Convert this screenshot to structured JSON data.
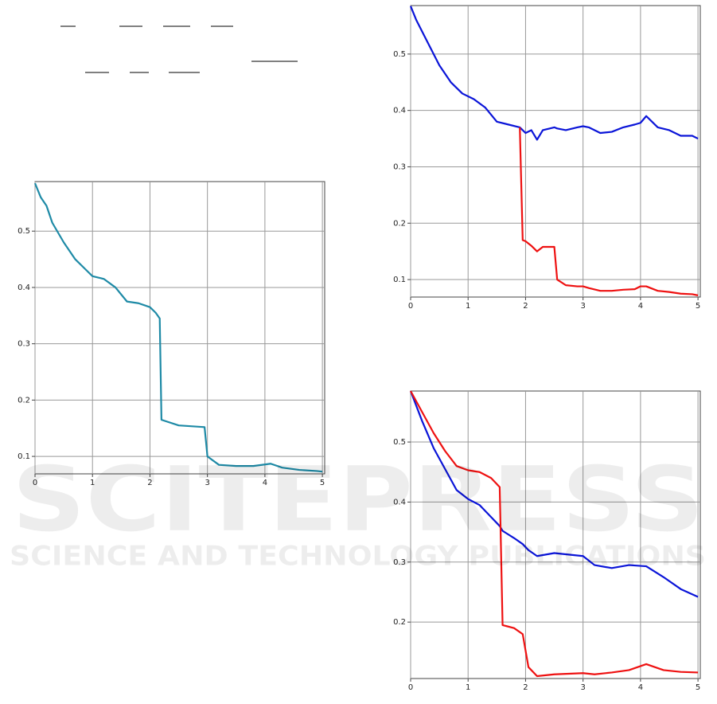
{
  "watermark": {
    "title": "SCITEPRESS",
    "subtitle": "SCIENCE AND TECHNOLOGY PUBLICATIONS"
  },
  "chart_data": [
    {
      "type": "line",
      "x": [
        0,
        0.1,
        0.2,
        0.3,
        0.5,
        0.7,
        0.9,
        1.0,
        1.2,
        1.4,
        1.6,
        1.8,
        2.0,
        2.1,
        2.17,
        2.2,
        2.5,
        2.95,
        3.0,
        3.2,
        3.5,
        3.8,
        4.1,
        4.3,
        4.6,
        4.9,
        5.0
      ],
      "series": [
        {
          "color": "#1e8aa6",
          "values": [
            0.585,
            0.56,
            0.545,
            0.515,
            0.48,
            0.45,
            0.43,
            0.42,
            0.415,
            0.4,
            0.375,
            0.372,
            0.365,
            0.355,
            0.345,
            0.165,
            0.155,
            0.152,
            0.1,
            0.085,
            0.083,
            0.083,
            0.087,
            0.08,
            0.076,
            0.074,
            0.073
          ]
        }
      ],
      "xlim": [
        0,
        5.04
      ],
      "xticks": [
        0,
        1,
        2,
        3,
        4,
        5
      ],
      "ylim": [
        0.069,
        0.588
      ],
      "yticks": [
        0.1,
        0.2,
        0.3,
        0.4,
        0.5
      ],
      "grid": true
    },
    {
      "type": "line",
      "x": [
        0,
        0.1,
        0.3,
        0.5,
        0.7,
        0.9,
        1.1,
        1.3,
        1.5,
        1.7,
        1.9,
        1.95,
        2.0,
        2.1,
        2.2,
        2.3,
        2.5,
        2.55,
        2.7,
        2.9,
        3.0,
        3.1,
        3.3,
        3.5,
        3.7,
        3.9,
        4.0,
        4.1,
        4.3,
        4.5,
        4.7,
        4.9,
        5.0
      ],
      "series": [
        {
          "color": "#0a14d8",
          "values": [
            0.585,
            0.56,
            0.52,
            0.48,
            0.45,
            0.43,
            0.42,
            0.405,
            0.38,
            0.375,
            0.37,
            0.365,
            0.36,
            0.365,
            0.348,
            0.365,
            0.37,
            0.368,
            0.365,
            0.37,
            0.372,
            0.37,
            0.36,
            0.362,
            0.37,
            0.375,
            0.378,
            0.39,
            0.37,
            0.365,
            0.355,
            0.355,
            0.35
          ]
        },
        {
          "color": "#ee1111",
          "values": [
            null,
            null,
            null,
            null,
            null,
            null,
            null,
            null,
            null,
            null,
            0.37,
            0.17,
            0.168,
            0.16,
            0.15,
            0.158,
            0.158,
            0.1,
            0.09,
            0.088,
            0.088,
            0.085,
            0.08,
            0.08,
            0.082,
            0.083,
            0.088,
            0.088,
            0.08,
            0.078,
            0.075,
            0.074,
            0.072
          ]
        }
      ],
      "xlim": [
        0,
        5.04
      ],
      "xticks": [
        0,
        1,
        2,
        3,
        4,
        5
      ],
      "ylim": [
        0.069,
        0.586
      ],
      "yticks": [
        0.1,
        0.2,
        0.3,
        0.4,
        0.5
      ],
      "grid": true
    },
    {
      "type": "line",
      "x": [
        0,
        0.2,
        0.4,
        0.6,
        0.8,
        1.0,
        1.2,
        1.4,
        1.55,
        1.6,
        1.8,
        1.95,
        2.05,
        2.2,
        2.5,
        3.0,
        3.2,
        3.5,
        3.8,
        4.1,
        4.4,
        4.7,
        5.0
      ],
      "series": [
        {
          "color": "#0a14d8",
          "values": [
            0.585,
            0.535,
            0.49,
            0.455,
            0.42,
            0.405,
            0.395,
            0.375,
            0.36,
            0.352,
            0.34,
            0.33,
            0.32,
            0.31,
            0.315,
            0.31,
            0.295,
            0.29,
            0.295,
            0.293,
            0.275,
            0.255,
            0.242
          ]
        },
        {
          "color": "#ee1111",
          "values": [
            0.585,
            0.55,
            0.515,
            0.485,
            0.46,
            0.453,
            0.45,
            0.44,
            0.425,
            0.195,
            0.19,
            0.18,
            0.125,
            0.11,
            0.113,
            0.115,
            0.113,
            0.116,
            0.12,
            0.13,
            0.12,
            0.117,
            0.116
          ]
        }
      ],
      "xlim": [
        0,
        5.04
      ],
      "xticks": [
        0,
        1,
        2,
        3,
        4,
        5
      ],
      "ylim": [
        0.106,
        0.585
      ],
      "yticks": [
        0.2,
        0.3,
        0.4,
        0.5
      ],
      "grid": true
    }
  ]
}
